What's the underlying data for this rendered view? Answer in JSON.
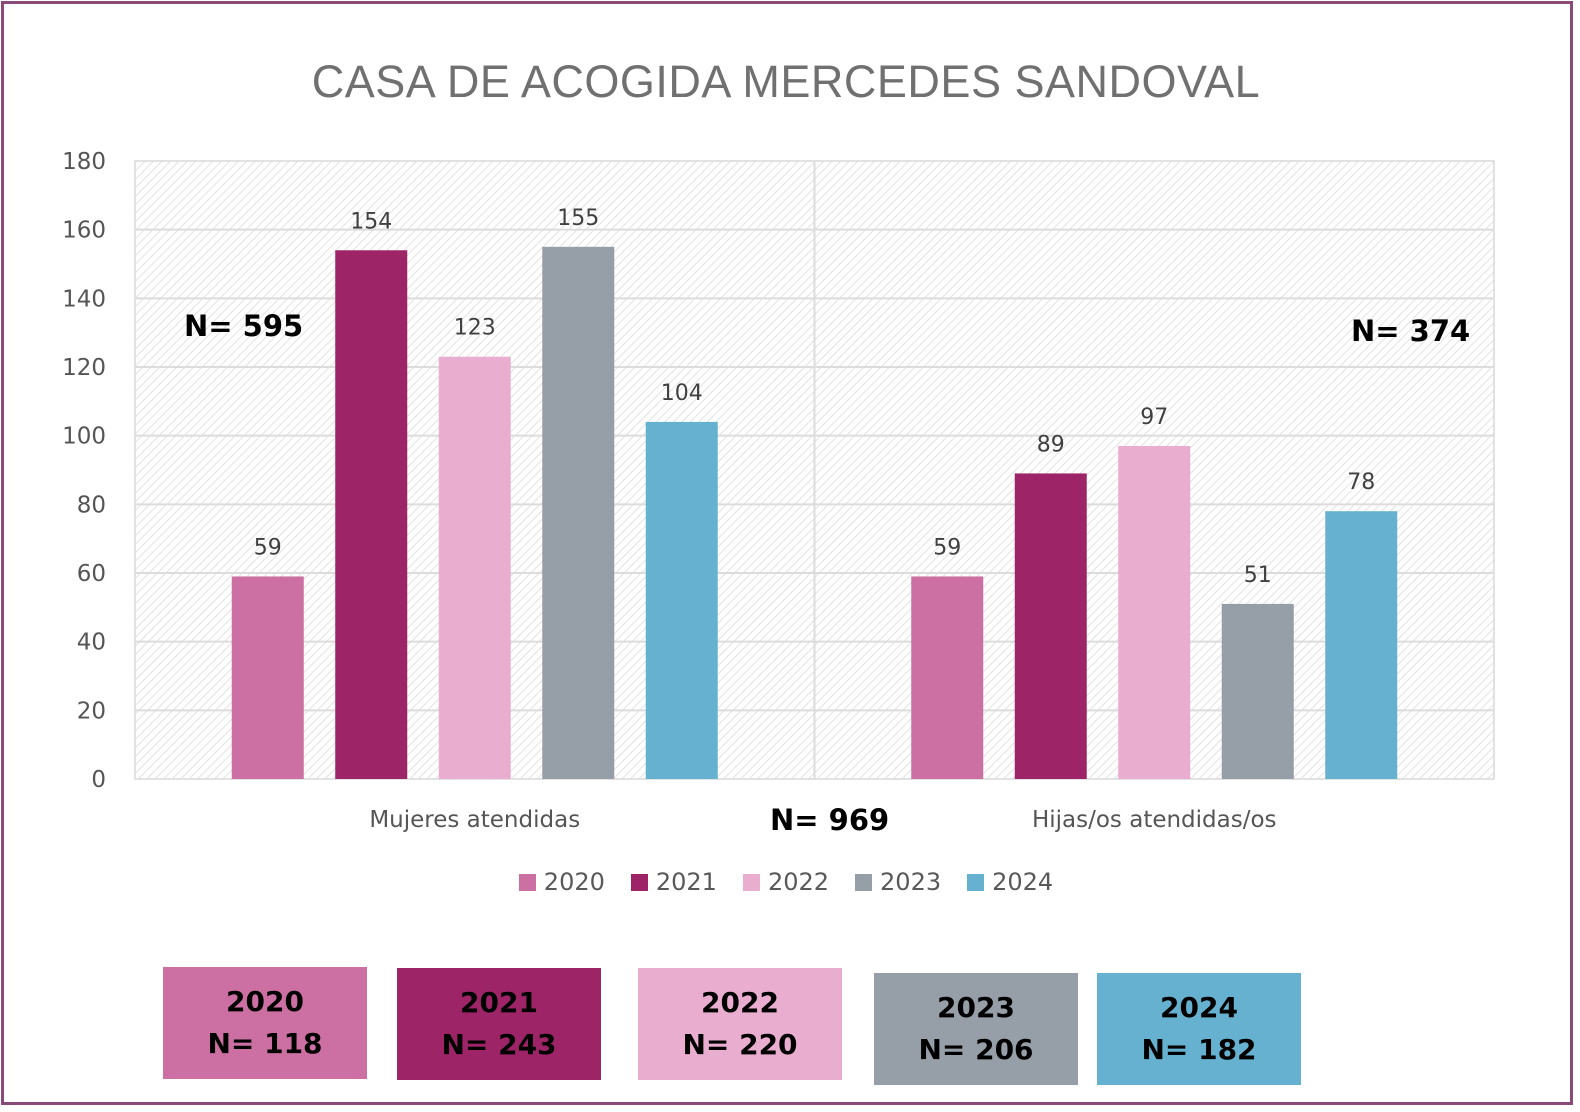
{
  "chart_data": {
    "type": "bar",
    "title": "CASA DE ACOGIDA MERCEDES SANDOVAL",
    "categories": [
      "Mujeres atendidas",
      "Hijas/os atendidas/os"
    ],
    "series": [
      {
        "name": "2020",
        "values": [
          59,
          59
        ],
        "color": "#cc6fa2"
      },
      {
        "name": "2021",
        "values": [
          154,
          89
        ],
        "color": "#9e2468"
      },
      {
        "name": "2022",
        "values": [
          123,
          97
        ],
        "color": "#e8adcf"
      },
      {
        "name": "2023",
        "values": [
          155,
          51
        ],
        "color": "#969ea8"
      },
      {
        "name": "2024",
        "values": [
          104,
          78
        ],
        "color": "#65b1cf"
      }
    ],
    "ylim": [
      0,
      180
    ],
    "yticks": [
      0,
      20,
      40,
      60,
      80,
      100,
      120,
      140,
      160,
      180
    ],
    "grid": true,
    "legend_position": "bottom",
    "annotations": {
      "n_mujeres": "N= 595",
      "n_hijos": "N= 374",
      "n_total": "N= 969"
    },
    "year_totals": [
      {
        "year": "2020",
        "label": "N= 118",
        "color": "#cc6fa2"
      },
      {
        "year": "2021",
        "label": "N= 243",
        "color": "#9e2468"
      },
      {
        "year": "2022",
        "label": "N= 220",
        "color": "#e8adcf"
      },
      {
        "year": "2023",
        "label": "N= 206",
        "color": "#969ea8"
      },
      {
        "year": "2024",
        "label": "N= 182",
        "color": "#65b1cf"
      }
    ]
  }
}
